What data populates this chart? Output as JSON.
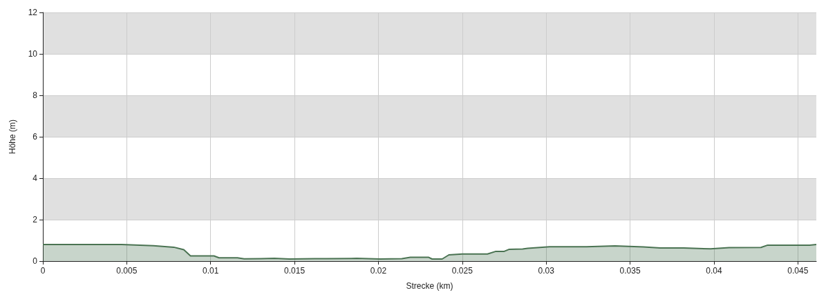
{
  "chart_data": {
    "type": "area",
    "xlabel": "Strecke (km)",
    "ylabel": "Höhe (m)",
    "x": [
      0,
      0.0047,
      0.0066,
      0.0078,
      0.0084,
      0.0088,
      0.0102,
      0.0105,
      0.0116,
      0.012,
      0.013,
      0.0138,
      0.0147,
      0.0162,
      0.0169,
      0.0187,
      0.0201,
      0.0214,
      0.0219,
      0.023,
      0.0232,
      0.0238,
      0.0242,
      0.025,
      0.0265,
      0.027,
      0.0275,
      0.0278,
      0.0286,
      0.0289,
      0.0302,
      0.0324,
      0.0341,
      0.0358,
      0.0368,
      0.0382,
      0.0398,
      0.0409,
      0.0428,
      0.0432,
      0.0457,
      0.0461
    ],
    "series": [
      {
        "color": "#4a7352",
        "values": [
          0.8,
          0.8,
          0.74,
          0.67,
          0.55,
          0.25,
          0.25,
          0.16,
          0.16,
          0.11,
          0.12,
          0.13,
          0.1,
          0.12,
          0.12,
          0.13,
          0.1,
          0.12,
          0.18,
          0.18,
          0.1,
          0.1,
          0.3,
          0.34,
          0.34,
          0.47,
          0.47,
          0.57,
          0.58,
          0.62,
          0.69,
          0.69,
          0.73,
          0.68,
          0.63,
          0.63,
          0.59,
          0.65,
          0.66,
          0.77,
          0.77,
          0.8
        ]
      }
    ],
    "xlim": [
      0,
      0.0461
    ],
    "xticks": [
      0,
      0.005,
      0.01,
      0.015,
      0.02,
      0.025,
      0.03,
      0.035,
      0.04,
      0.045
    ],
    "ylim": [
      0,
      12
    ],
    "yticks": [
      0,
      2,
      4,
      6,
      8,
      10,
      12
    ],
    "grid": true
  }
}
